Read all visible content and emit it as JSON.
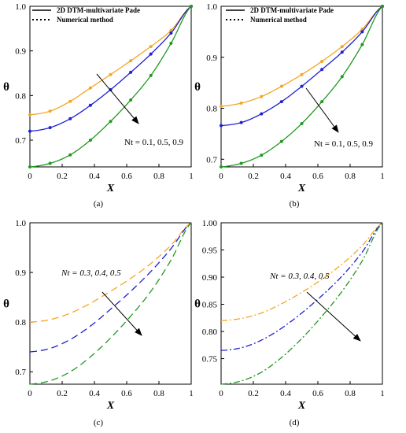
{
  "chart_data": [
    {
      "type": "line",
      "panel_label": "(a)",
      "xlabel": "X",
      "ylabel": "θ",
      "xlim": [
        0,
        1
      ],
      "ylim": [
        0.64,
        1.0
      ],
      "xticks": [
        "0",
        "0.2",
        "0.4",
        "0.6",
        "0.8",
        "1"
      ],
      "yticks": [
        {
          "v": 0.7,
          "t": "0.7"
        },
        {
          "v": 0.8,
          "t": "0.8"
        },
        {
          "v": 0.9,
          "t": "0.9"
        },
        {
          "v": 1.0,
          "t": "1.0"
        }
      ],
      "legend": {
        "placement": "top-left",
        "entries": [
          {
            "label": "2D DTM-multivariate Pade",
            "style": "solid"
          },
          {
            "label": "Numerical method",
            "style": "dotted"
          }
        ]
      },
      "annotation": {
        "text": "Nt = 0.1, 0.5, 0.9",
        "italic": false
      },
      "series": [
        {
          "color": "#f5a623",
          "dash": "solid",
          "markers": true,
          "theta0": 0.757,
          "points": [
            [
              0,
              0.757
            ],
            [
              0.125,
              0.765
            ],
            [
              0.25,
              0.787
            ],
            [
              0.375,
              0.817
            ],
            [
              0.5,
              0.847
            ],
            [
              0.625,
              0.878
            ],
            [
              0.75,
              0.91
            ],
            [
              0.875,
              0.946
            ],
            [
              1.0,
              1.0
            ]
          ]
        },
        {
          "color": "#1f1fd6",
          "dash": "solid",
          "markers": true,
          "theta0": 0.72,
          "points": [
            [
              0,
              0.72
            ],
            [
              0.125,
              0.728
            ],
            [
              0.25,
              0.748
            ],
            [
              0.375,
              0.778
            ],
            [
              0.5,
              0.813
            ],
            [
              0.625,
              0.852
            ],
            [
              0.75,
              0.893
            ],
            [
              0.875,
              0.94
            ],
            [
              1.0,
              1.0
            ]
          ]
        },
        {
          "color": "#1f9a1f",
          "dash": "solid",
          "markers": true,
          "theta0": 0.64,
          "points": [
            [
              0,
              0.64
            ],
            [
              0.125,
              0.648
            ],
            [
              0.25,
              0.667
            ],
            [
              0.375,
              0.7
            ],
            [
              0.5,
              0.742
            ],
            [
              0.625,
              0.79
            ],
            [
              0.75,
              0.845
            ],
            [
              0.875,
              0.917
            ],
            [
              1.0,
              1.0
            ]
          ]
        }
      ]
    },
    {
      "type": "line",
      "panel_label": "(b)",
      "xlabel": "X",
      "ylabel": "θ",
      "xlim": [
        0,
        1
      ],
      "ylim": [
        0.685,
        1.0
      ],
      "xticks": [
        "0",
        "0.2",
        "0.4",
        "0.6",
        "0.8",
        "1"
      ],
      "yticks": [
        {
          "v": 0.7,
          "t": "0.7"
        },
        {
          "v": 0.8,
          "t": "0.8"
        },
        {
          "v": 0.9,
          "t": "0.9"
        },
        {
          "v": 1.0,
          "t": "1.0"
        }
      ],
      "legend": {
        "placement": "top-left",
        "entries": [
          {
            "label": "2D DTM-multivariate Pade",
            "style": "solid"
          },
          {
            "label": "Numerical method",
            "style": "dotted"
          }
        ]
      },
      "annotation": {
        "text": "Nt = 0.1, 0.5, 0.9",
        "italic": false
      },
      "series": [
        {
          "color": "#f5a623",
          "dash": "solid",
          "markers": true,
          "theta0": 0.804,
          "points": [
            [
              0,
              0.804
            ],
            [
              0.125,
              0.81
            ],
            [
              0.25,
              0.823
            ],
            [
              0.375,
              0.843
            ],
            [
              0.5,
              0.866
            ],
            [
              0.625,
              0.892
            ],
            [
              0.75,
              0.921
            ],
            [
              0.875,
              0.955
            ],
            [
              1.0,
              1.0
            ]
          ]
        },
        {
          "color": "#1f1fd6",
          "dash": "solid",
          "markers": true,
          "theta0": 0.766,
          "points": [
            [
              0,
              0.766
            ],
            [
              0.125,
              0.772
            ],
            [
              0.25,
              0.789
            ],
            [
              0.375,
              0.813
            ],
            [
              0.5,
              0.843
            ],
            [
              0.625,
              0.876
            ],
            [
              0.75,
              0.91
            ],
            [
              0.875,
              0.95
            ],
            [
              1.0,
              1.0
            ]
          ]
        },
        {
          "color": "#1f9a1f",
          "dash": "solid",
          "markers": true,
          "theta0": 0.685,
          "points": [
            [
              0,
              0.685
            ],
            [
              0.125,
              0.692
            ],
            [
              0.25,
              0.708
            ],
            [
              0.375,
              0.735
            ],
            [
              0.5,
              0.77
            ],
            [
              0.625,
              0.813
            ],
            [
              0.75,
              0.862
            ],
            [
              0.875,
              0.925
            ],
            [
              1.0,
              1.0
            ]
          ]
        }
      ]
    },
    {
      "type": "line",
      "panel_label": "(c)",
      "xlabel": "X",
      "ylabel": "θ",
      "xlim": [
        0,
        1
      ],
      "ylim": [
        0.675,
        1.0
      ],
      "xticks": [
        "0",
        "0.2",
        "0.4",
        "0.6",
        "0.8",
        "1"
      ],
      "yticks": [
        {
          "v": 0.7,
          "t": "0.7"
        },
        {
          "v": 0.8,
          "t": "0.8"
        },
        {
          "v": 0.9,
          "t": "0.9"
        },
        {
          "v": 1.0,
          "t": "1.0"
        }
      ],
      "annotation": {
        "text": "Nt = 0.3, 0.4, 0.5",
        "italic": true
      },
      "series": [
        {
          "color": "#f5a623",
          "dash": "dashed",
          "markers": false,
          "theta0": 0.8,
          "points": [
            [
              0,
              0.8
            ],
            [
              0.125,
              0.805
            ],
            [
              0.25,
              0.818
            ],
            [
              0.375,
              0.838
            ],
            [
              0.5,
              0.862
            ],
            [
              0.625,
              0.888
            ],
            [
              0.75,
              0.918
            ],
            [
              0.875,
              0.955
            ],
            [
              1.0,
              1.0
            ]
          ]
        },
        {
          "color": "#1f1fd6",
          "dash": "dashed",
          "markers": false,
          "theta0": 0.74,
          "points": [
            [
              0,
              0.74
            ],
            [
              0.125,
              0.747
            ],
            [
              0.25,
              0.765
            ],
            [
              0.375,
              0.792
            ],
            [
              0.5,
              0.826
            ],
            [
              0.625,
              0.862
            ],
            [
              0.75,
              0.902
            ],
            [
              0.875,
              0.948
            ],
            [
              1.0,
              1.0
            ]
          ]
        },
        {
          "color": "#1f9a1f",
          "dash": "dashed",
          "markers": false,
          "theta0": 0.675,
          "points": [
            [
              0,
              0.675
            ],
            [
              0.125,
              0.682
            ],
            [
              0.25,
              0.7
            ],
            [
              0.375,
              0.73
            ],
            [
              0.5,
              0.768
            ],
            [
              0.625,
              0.812
            ],
            [
              0.75,
              0.862
            ],
            [
              0.875,
              0.925
            ],
            [
              1.0,
              1.0
            ]
          ]
        }
      ]
    },
    {
      "type": "line",
      "panel_label": "(d)",
      "xlabel": "X",
      "ylabel": "θ",
      "xlim": [
        0,
        1
      ],
      "ylim": [
        0.703,
        1.0
      ],
      "xticks": [
        "0",
        "0.2",
        "0.4",
        "0.6",
        "0.8",
        "1"
      ],
      "yticks": [
        {
          "v": 0.75,
          "t": "0.75"
        },
        {
          "v": 0.8,
          "t": "0.80"
        },
        {
          "v": 0.85,
          "t": "0.85"
        },
        {
          "v": 0.9,
          "t": "0.90"
        },
        {
          "v": 0.95,
          "t": "0.95"
        },
        {
          "v": 1.0,
          "t": "1.00"
        }
      ],
      "annotation": {
        "text": "Nt = 0.3, 0.4, 0.5",
        "italic": true
      },
      "series": [
        {
          "color": "#f5a623",
          "dash": "dashdot",
          "markers": false,
          "theta0": 0.82,
          "points": [
            [
              0,
              0.82
            ],
            [
              0.125,
              0.824
            ],
            [
              0.25,
              0.834
            ],
            [
              0.375,
              0.851
            ],
            [
              0.5,
              0.872
            ],
            [
              0.625,
              0.896
            ],
            [
              0.75,
              0.924
            ],
            [
              0.875,
              0.958
            ],
            [
              1.0,
              1.0
            ]
          ]
        },
        {
          "color": "#1f1fd6",
          "dash": "dashdot",
          "markers": false,
          "theta0": 0.765,
          "points": [
            [
              0,
              0.765
            ],
            [
              0.125,
              0.77
            ],
            [
              0.25,
              0.784
            ],
            [
              0.375,
              0.806
            ],
            [
              0.5,
              0.834
            ],
            [
              0.625,
              0.866
            ],
            [
              0.75,
              0.902
            ],
            [
              0.875,
              0.946
            ],
            [
              1.0,
              1.0
            ]
          ]
        },
        {
          "color": "#1f9a1f",
          "dash": "dashdot",
          "markers": false,
          "theta0": 0.703,
          "points": [
            [
              0,
              0.703
            ],
            [
              0.125,
              0.709
            ],
            [
              0.25,
              0.725
            ],
            [
              0.375,
              0.752
            ],
            [
              0.5,
              0.787
            ],
            [
              0.625,
              0.828
            ],
            [
              0.75,
              0.874
            ],
            [
              0.875,
              0.93
            ],
            [
              1.0,
              1.0
            ]
          ]
        }
      ]
    }
  ]
}
